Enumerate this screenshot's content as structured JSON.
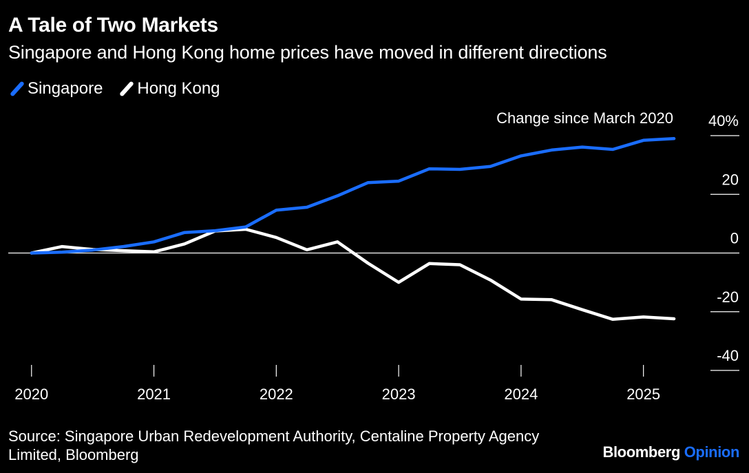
{
  "header": {
    "title": "A Tale of Two Markets",
    "subtitle": "Singapore and Hong Kong home prices have moved in different directions"
  },
  "legend": [
    {
      "label": "Singapore",
      "color": "#1a6dff"
    },
    {
      "label": "Hong Kong",
      "color": "#ffffff"
    }
  ],
  "footer": {
    "source": "Source: Singapore Urban Redevelopment Authority, Centaline Property Agency Limited, Bloomberg",
    "brand_main": "Bloomberg",
    "brand_sub": "Opinion",
    "brand_sub_color": "#1a6dff"
  },
  "chart_data": {
    "type": "line",
    "annotation": "Change since March 2020",
    "x_axis": {
      "ticks": [
        "2020",
        "2021",
        "2022",
        "2023",
        "2024",
        "2025"
      ],
      "tick_values": [
        2020.0,
        2021.0,
        2022.0,
        2023.0,
        2024.0,
        2025.0
      ],
      "range": [
        2019.99,
        2025.3
      ]
    },
    "y_axis": {
      "range": [
        -40,
        40
      ],
      "ticks": [
        {
          "value": 40,
          "label": "40%"
        },
        {
          "value": 20,
          "label": "20"
        },
        {
          "value": 0,
          "label": "0"
        },
        {
          "value": -20,
          "label": "-20"
        },
        {
          "value": -40,
          "label": "-40"
        }
      ]
    },
    "series": [
      {
        "name": "Singapore",
        "color": "#1a6dff",
        "x": [
          2020.0,
          2020.25,
          2020.5,
          2020.75,
          2021.0,
          2021.25,
          2021.5,
          2021.75,
          2022.0,
          2022.25,
          2022.5,
          2022.75,
          2023.0,
          2023.25,
          2023.5,
          2023.75,
          2024.0,
          2024.25,
          2024.5,
          2024.75,
          2025.0,
          2025.25
        ],
        "values": [
          0,
          0.3,
          1.0,
          2.2,
          3.8,
          7.0,
          7.6,
          8.9,
          14.6,
          15.6,
          19.5,
          24.0,
          24.5,
          28.7,
          28.5,
          29.5,
          33.1,
          35.1,
          36.1,
          35.3,
          38.4,
          39.0
        ]
      },
      {
        "name": "Hong Kong",
        "color": "#ffffff",
        "x": [
          2020.0,
          2020.25,
          2020.5,
          2020.75,
          2021.0,
          2021.25,
          2021.5,
          2021.75,
          2022.0,
          2022.25,
          2022.5,
          2022.75,
          2023.0,
          2023.25,
          2023.5,
          2023.75,
          2024.0,
          2024.25,
          2024.5,
          2024.75,
          2025.0,
          2025.25
        ],
        "values": [
          0,
          2.2,
          1.2,
          0.8,
          0.4,
          3.1,
          7.5,
          8.1,
          5.3,
          1.1,
          3.8,
          -3.5,
          -10.0,
          -3.6,
          -4.0,
          -9.2,
          -15.7,
          -15.9,
          -19.3,
          -22.6,
          -21.8,
          -22.4
        ]
      }
    ]
  }
}
